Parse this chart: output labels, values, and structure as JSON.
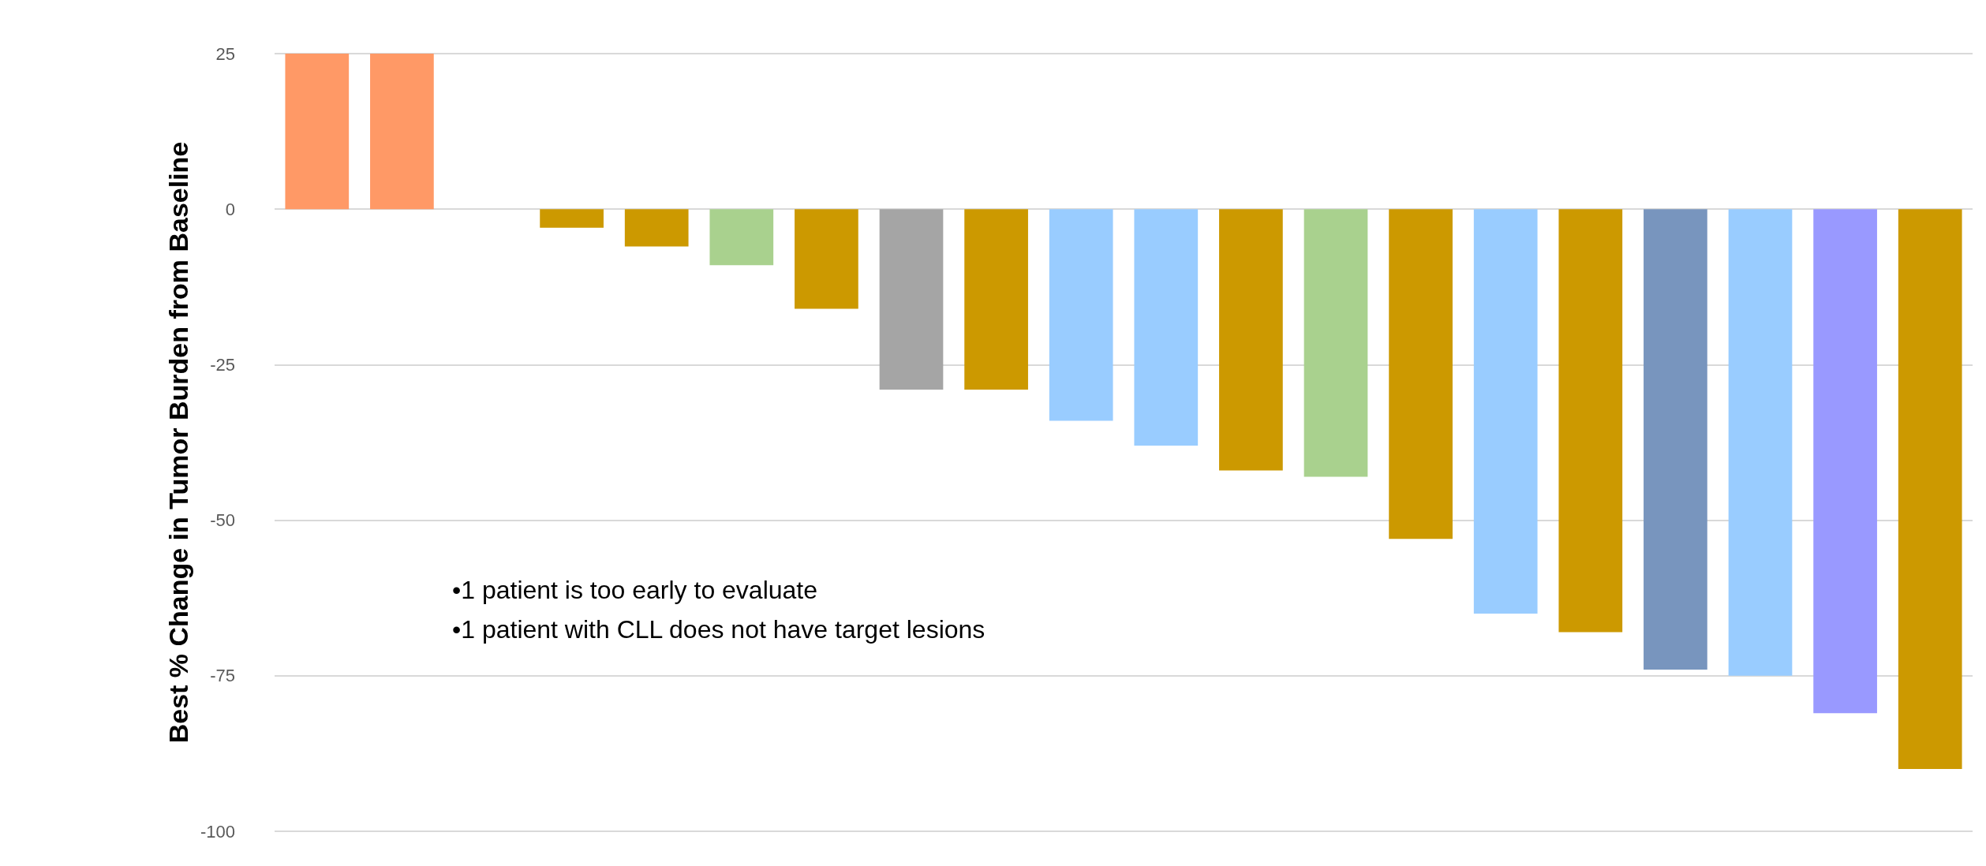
{
  "chart_data": {
    "type": "bar",
    "ylabel": "Best % Change in Tumor Burden from Baseline",
    "categories": [
      null,
      null,
      null,
      null,
      null,
      null,
      null,
      null,
      null,
      null,
      null,
      null,
      null,
      null,
      null,
      null,
      null,
      null,
      null,
      null
    ],
    "values": [
      25,
      25,
      null,
      -3,
      -6,
      -9,
      -16,
      -29,
      -29,
      -34,
      -38,
      -42,
      -43,
      -53,
      -65,
      -68,
      -74,
      -75,
      -81,
      -90
    ],
    "colors": [
      "#ff9966",
      "#ff9966",
      "#ffffff",
      "#cc9900",
      "#cc9900",
      "#a9d18e",
      "#cc9900",
      "#a5a5a5",
      "#cc9900",
      "#99ccff",
      "#99ccff",
      "#cc9900",
      "#a9d18e",
      "#cc9900",
      "#99ccff",
      "#cc9900",
      "#7895be",
      "#99ccff",
      "#9999ff",
      "#cc9900"
    ],
    "ylim": [
      -100,
      25
    ],
    "yticks": [
      -100,
      -75,
      -50,
      -25,
      0,
      25
    ],
    "grid": "y",
    "annotations": [
      "•1 patient is too early to evaluate",
      "•1 patient with CLL does not have target lesions"
    ]
  }
}
